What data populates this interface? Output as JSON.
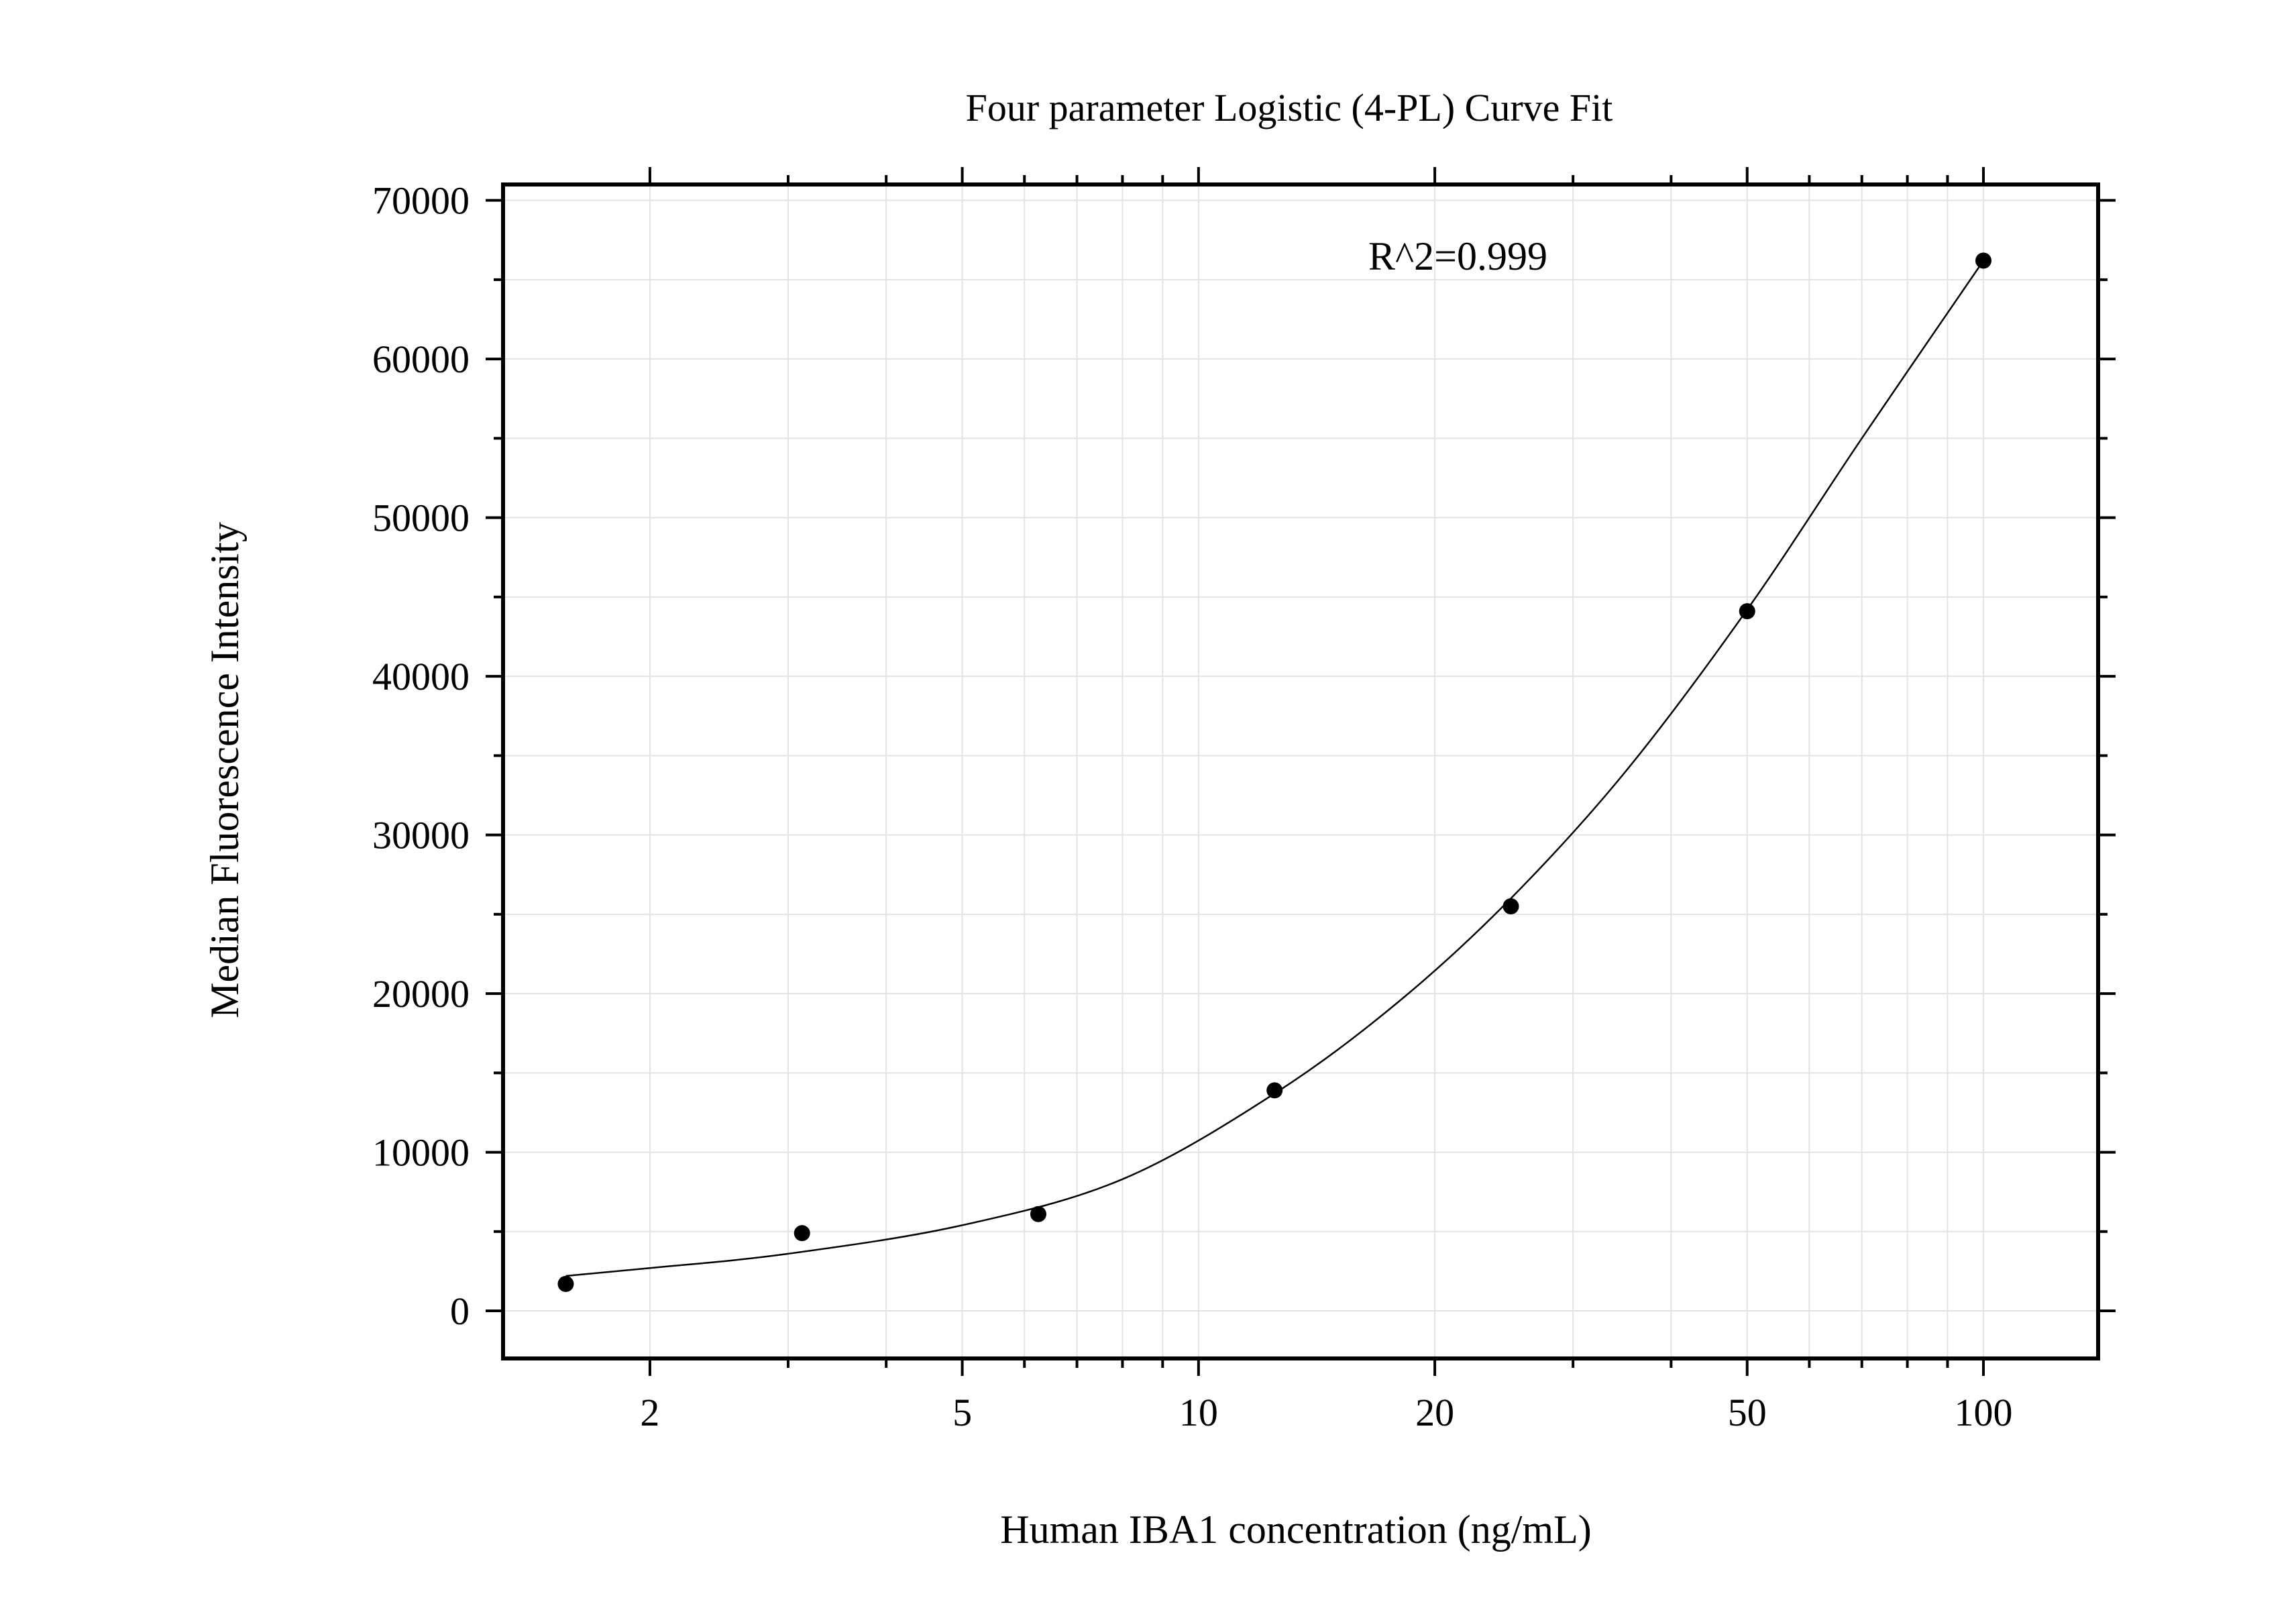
{
  "chart_data": {
    "type": "scatter",
    "title": "Four parameter Logistic (4-PL) Curve Fit",
    "xlabel": "Human IBA1 concentration (ng/mL)",
    "ylabel": "Median Fluorescence Intensity",
    "annotation": "R^2=0.999",
    "x_scale": "log",
    "xlim": [
      1.3,
      140
    ],
    "ylim": [
      -3000,
      71000
    ],
    "x_ticks": [
      2,
      5,
      10,
      20,
      50,
      100
    ],
    "x_tick_labels": [
      "2",
      "5",
      "10",
      "20",
      "50",
      "100"
    ],
    "y_ticks": [
      0,
      10000,
      20000,
      30000,
      40000,
      50000,
      60000,
      70000
    ],
    "y_tick_labels": [
      "0",
      "10000",
      "20000",
      "30000",
      "40000",
      "50000",
      "60000",
      "70000"
    ],
    "grid": true,
    "series": [
      {
        "kind": "points",
        "x": [
          1.5625,
          3.125,
          6.25,
          12.5,
          25,
          50,
          100
        ],
        "y": [
          1700,
          4900,
          6100,
          13900,
          25500,
          44100,
          66200
        ]
      },
      {
        "kind": "fit-line",
        "x": [
          1.5625,
          2,
          3,
          5,
          8,
          12.5,
          18,
          25,
          35,
          50,
          70,
          100
        ],
        "y": [
          2200,
          2700,
          3600,
          5400,
          8300,
          13700,
          19500,
          26000,
          34000,
          44200,
          55000,
          66200
        ]
      }
    ]
  }
}
